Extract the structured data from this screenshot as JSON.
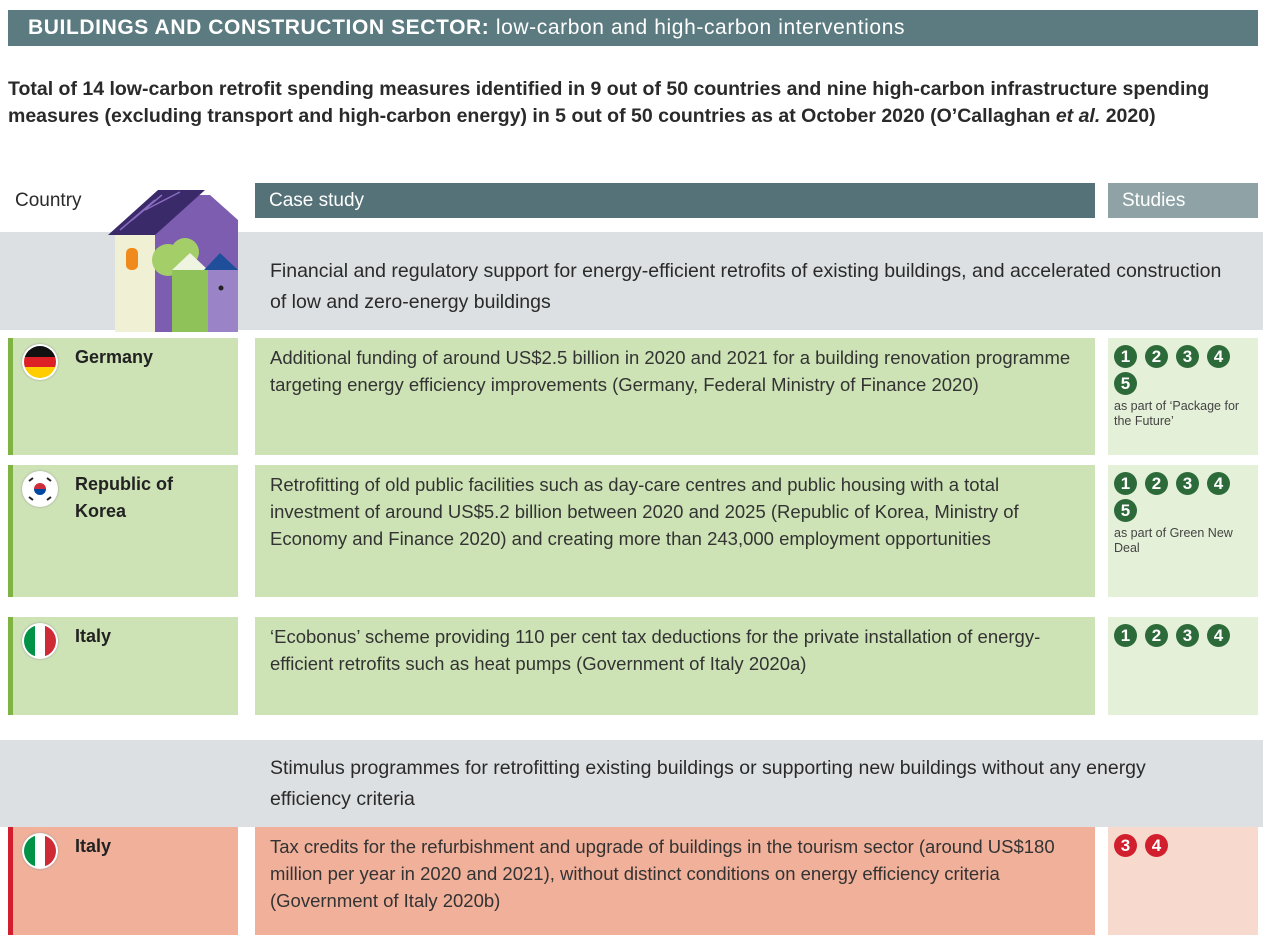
{
  "header": {
    "title_bold": "BUILDINGS AND CONSTRUCTION SECTOR:",
    "title_rest": "low-carbon and high-carbon interventions"
  },
  "intro": {
    "before": "Total of 14 low-carbon retrofit spending measures identified in 9 out of 50 countries and nine high-carbon infrastructure spending measures (excluding transport and high-carbon energy) in 5 out of 50 countries as at October 2020 (O’Callaghan",
    "italic": "et al.",
    "after": "2020)"
  },
  "columns": [
    "Country",
    "Case study",
    "Studies"
  ],
  "sections": [
    {
      "heading": "Financial and regulatory support for energy-efficient retrofits of existing buildings, and accelerated construction of low and zero-energy buildings",
      "rows": [
        {
          "country": "Germany",
          "case": "Additional funding of around US$2.5 billion in 2020 and 2021 for a building renovation programme targeting energy efficiency improvements (Germany, Federal Ministry of Finance 2020)",
          "studies": [
            1,
            2,
            3,
            4,
            5
          ],
          "note": "as part of ‘Package for the Future’"
        },
        {
          "country": "Republic of Korea",
          "case": "Retrofitting of old public facilities such as day-care centres and public housing with a total investment of around US$5.2 billion between 2020 and 2025 (Republic of Korea, Ministry of Economy and Finance 2020) and creating more than 243,000 employment opportunities",
          "studies": [
            1,
            2,
            3,
            4,
            5
          ],
          "note": "as part of Green New Deal"
        },
        {
          "country": "Italy",
          "case": "‘Ecobonus’ scheme providing 110 per cent tax deductions for the private installation of energy-efficient retrofits such as heat pumps (Government of Italy 2020a)",
          "studies": [
            1,
            2,
            3,
            4
          ]
        }
      ]
    },
    {
      "heading": "Stimulus programmes for retrofitting existing buildings or supporting new buildings without any energy efficiency criteria",
      "rows": [
        {
          "country": "Italy",
          "case": "Tax credits for the refurbishment and upgrade of buildings in the tourism sector (around US$180 million per year in 2020 and 2021), without distinct conditions on energy efficiency criteria (Government of Italy 2020b)",
          "studies": [
            3,
            4
          ]
        }
      ]
    }
  ]
}
